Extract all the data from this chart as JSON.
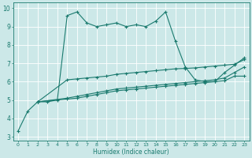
{
  "xlabel": "Humidex (Indice chaleur)",
  "bg_color": "#cce8e8",
  "grid_color": "#ffffff",
  "line_color": "#1a7a6e",
  "xlim": [
    -0.5,
    23.5
  ],
  "ylim": [
    2.8,
    10.3
  ],
  "xticks": [
    0,
    1,
    2,
    3,
    4,
    5,
    6,
    7,
    8,
    9,
    10,
    11,
    12,
    13,
    14,
    15,
    16,
    17,
    18,
    19,
    20,
    21,
    22,
    23
  ],
  "yticks": [
    3,
    4,
    5,
    6,
    7,
    8,
    9,
    10
  ],
  "line1_x": [
    0,
    1,
    2,
    3,
    4,
    5,
    6,
    7,
    8,
    9,
    10,
    11,
    12,
    13,
    14,
    15,
    16,
    17,
    18,
    19,
    20,
    21,
    22,
    23
  ],
  "line1_y": [
    3.3,
    4.4,
    4.9,
    4.9,
    5.0,
    9.6,
    9.8,
    9.2,
    9.0,
    9.1,
    9.2,
    9.0,
    9.1,
    9.0,
    9.3,
    9.8,
    8.2,
    6.8,
    6.1,
    6.0,
    6.0,
    6.5,
    6.9,
    7.3
  ],
  "line2_x": [
    2,
    5,
    6,
    7,
    8,
    9,
    10,
    11,
    12,
    13,
    14,
    15,
    16,
    17,
    18,
    19,
    20,
    21,
    22,
    23
  ],
  "line2_y": [
    4.9,
    6.1,
    6.15,
    6.2,
    6.25,
    6.3,
    6.4,
    6.45,
    6.5,
    6.55,
    6.6,
    6.65,
    6.7,
    6.72,
    6.75,
    6.8,
    6.85,
    6.9,
    6.95,
    7.2
  ],
  "line3_x": [
    2,
    5,
    6,
    7,
    8,
    9,
    10,
    11,
    12,
    13,
    14,
    15,
    16,
    17,
    18,
    19,
    20,
    21,
    22,
    23
  ],
  "line3_y": [
    4.9,
    5.1,
    5.2,
    5.3,
    5.4,
    5.5,
    5.6,
    5.65,
    5.7,
    5.75,
    5.8,
    5.85,
    5.9,
    5.95,
    6.0,
    6.05,
    6.1,
    6.2,
    6.5,
    6.8
  ],
  "line4_x": [
    2,
    5,
    6,
    7,
    8,
    9,
    10,
    11,
    12,
    13,
    14,
    15,
    16,
    17,
    18,
    19,
    20,
    21,
    22,
    23
  ],
  "line4_y": [
    4.9,
    5.05,
    5.1,
    5.2,
    5.3,
    5.4,
    5.5,
    5.55,
    5.6,
    5.65,
    5.7,
    5.75,
    5.8,
    5.85,
    5.9,
    5.95,
    6.0,
    6.05,
    6.3,
    6.3
  ]
}
